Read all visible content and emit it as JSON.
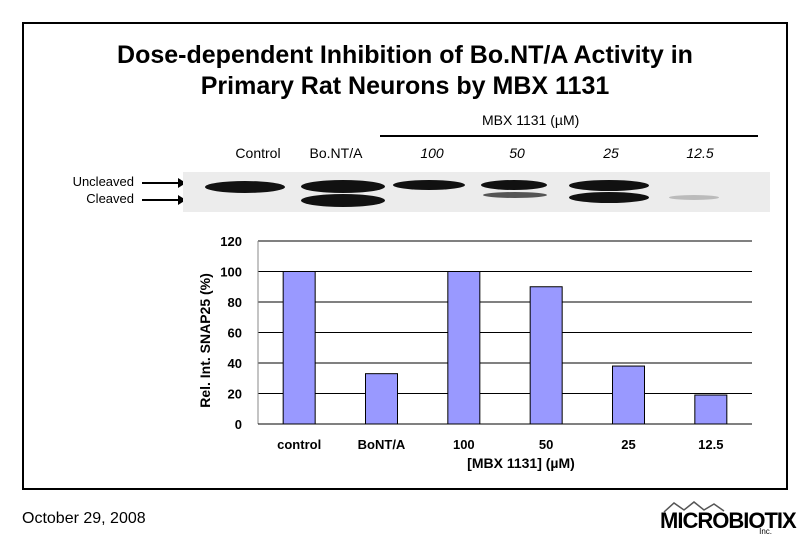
{
  "slide": {
    "title_line1": "Dose-dependent Inhibition of Bo.NT/A Activity in",
    "title_line2": "Primary Rat Neurons by MBX 1131",
    "footer_date": "October 29, 2008",
    "logo_text": "MICROBIOTIX",
    "logo_suffix": "Inc."
  },
  "blot": {
    "group_label": "MBX 1131 (µM)",
    "lanes": [
      "Control",
      "Bo.NT/A",
      "100",
      "50",
      "25",
      "12.5"
    ],
    "uncleaved_label": "Uncleaved",
    "cleaved_label": "Cleaved"
  },
  "chart_data": {
    "type": "bar",
    "categories": [
      "control",
      "BoNT/A",
      "100",
      "50",
      "25",
      "12.5"
    ],
    "values": [
      100,
      33,
      100,
      90,
      38,
      19
    ],
    "xlabel": "[MBX 1131] (µM)",
    "ylabel": "Rel. Int. SNAP25 (%)",
    "ylim": [
      0,
      120
    ],
    "yticks": [
      "0",
      "20",
      "40",
      "60",
      "80",
      "100",
      "120"
    ],
    "grid": true,
    "bar_color": "#9999ff"
  }
}
